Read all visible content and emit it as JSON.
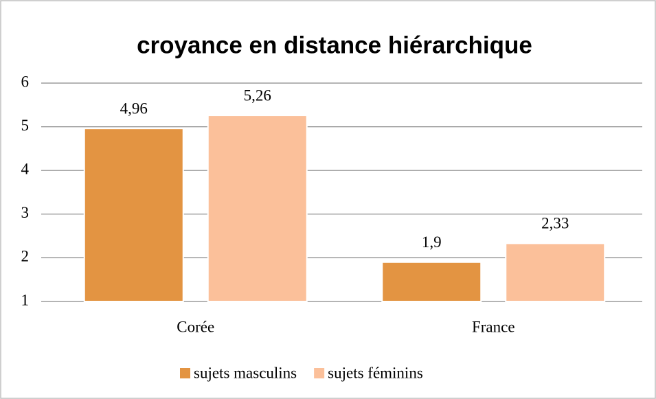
{
  "chart_data": {
    "type": "bar",
    "title": "croyance en distance hiérarchique",
    "categories": [
      "Corée",
      "France"
    ],
    "series": [
      {
        "name": "sujets masculins",
        "color": "#e39442",
        "values": [
          4.96,
          1.9
        ],
        "value_labels": [
          "4,96",
          "1,9"
        ]
      },
      {
        "name": "sujets féminins",
        "color": "#fbc09a",
        "values": [
          5.26,
          2.33
        ],
        "value_labels": [
          "5,26",
          "2,33"
        ]
      }
    ],
    "ylim": [
      1,
      6
    ],
    "yticks": [
      1,
      2,
      3,
      4,
      5,
      6
    ],
    "grid": true,
    "legend": "bottom"
  }
}
